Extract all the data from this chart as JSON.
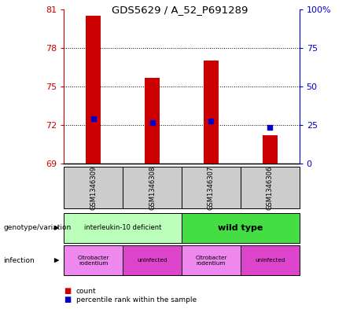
{
  "title": "GDS5629 / A_52_P691289",
  "samples": [
    "GSM1346309",
    "GSM1346308",
    "GSM1346307",
    "GSM1346306"
  ],
  "counts": [
    80.5,
    75.7,
    77.0,
    71.2
  ],
  "percentile_ranks_mapped": [
    72.5,
    72.2,
    72.3,
    71.8
  ],
  "ylim_left": [
    69,
    81
  ],
  "ylim_right": [
    0,
    100
  ],
  "yticks_left": [
    69,
    72,
    75,
    78,
    81
  ],
  "yticks_right": [
    0,
    25,
    50,
    75,
    100
  ],
  "ytick_labels_right": [
    "0",
    "25",
    "50",
    "75",
    "100%"
  ],
  "bar_color": "#cc0000",
  "dot_color": "#0000cc",
  "genotype_labels": [
    "interleukin-10 deficient",
    "wild type"
  ],
  "genotype_spans": [
    2,
    2
  ],
  "genotype_colors": [
    "#bbffbb",
    "#44dd44"
  ],
  "infection_labels": [
    "Citrobacter\nrodentium",
    "uninfected",
    "Citrobacter\nrodentium",
    "uninfected"
  ],
  "infection_colors": [
    "#ee88ee",
    "#dd44cc",
    "#ee88ee",
    "#dd44cc"
  ],
  "left_axis_color": "#cc0000",
  "right_axis_color": "#0000cc",
  "sample_box_color": "#cccccc",
  "bar_width": 0.25
}
